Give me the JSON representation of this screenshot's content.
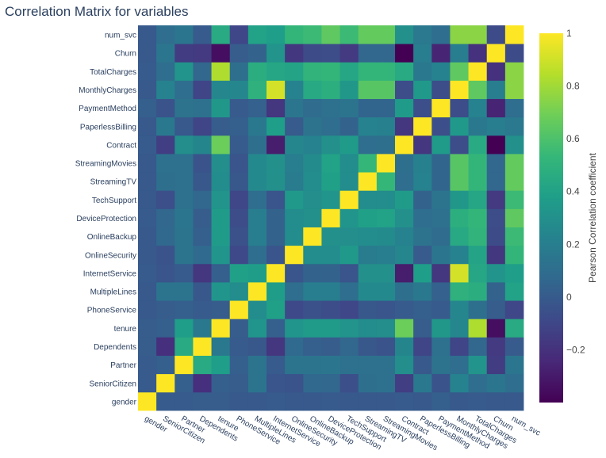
{
  "chart_data": {
    "type": "heatmap",
    "title": "Correlation Matrix for variables",
    "variables": [
      "gender",
      "SeniorCitizen",
      "Partner",
      "Dependents",
      "tenure",
      "PhoneService",
      "MultipleLines",
      "InternetService",
      "OnlineSecurity",
      "OnlineBackup",
      "DeviceProtection",
      "TechSupport",
      "StreamingTV",
      "StreamingMovies",
      "Contract",
      "PaperlessBilling",
      "PaymentMethod",
      "MonthlyCharges",
      "TotalCharges",
      "Churn",
      "num_svc"
    ],
    "values": [
      [
        1.0,
        0.0,
        0.0,
        0.01,
        0.01,
        -0.01,
        -0.01,
        0.0,
        -0.01,
        -0.01,
        0.0,
        -0.01,
        -0.01,
        -0.01,
        0.0,
        -0.01,
        0.02,
        -0.01,
        0.0,
        -0.01,
        -0.01
      ],
      [
        0.0,
        1.0,
        0.02,
        -0.21,
        0.02,
        0.01,
        0.14,
        -0.03,
        -0.04,
        0.07,
        0.06,
        -0.06,
        0.11,
        0.12,
        -0.14,
        0.16,
        -0.04,
        0.22,
        0.1,
        0.15,
        0.1
      ],
      [
        0.0,
        0.02,
        1.0,
        0.45,
        0.38,
        0.02,
        0.14,
        0.0,
        0.14,
        0.14,
        0.15,
        0.12,
        0.12,
        0.12,
        0.29,
        -0.01,
        0.13,
        0.1,
        0.32,
        -0.15,
        0.15
      ],
      [
        0.01,
        -0.21,
        0.45,
        1.0,
        0.16,
        -0.0,
        -0.02,
        -0.18,
        0.08,
        0.02,
        0.01,
        0.06,
        -0.02,
        -0.04,
        0.24,
        -0.11,
        0.12,
        -0.11,
        0.06,
        -0.16,
        0.0
      ],
      [
        0.01,
        0.02,
        0.38,
        0.16,
        1.0,
        0.01,
        0.33,
        0.02,
        0.33,
        0.36,
        0.36,
        0.32,
        0.28,
        0.29,
        0.68,
        0.01,
        0.34,
        0.25,
        0.83,
        -0.35,
        0.45
      ],
      [
        -0.01,
        0.01,
        0.02,
        -0.0,
        0.01,
        1.0,
        0.28,
        0.39,
        -0.09,
        -0.05,
        -0.07,
        -0.1,
        -0.02,
        -0.03,
        0.0,
        0.02,
        -0.0,
        0.25,
        0.11,
        0.01,
        -0.1
      ],
      [
        -0.01,
        0.14,
        0.14,
        -0.02,
        0.33,
        0.28,
        1.0,
        0.37,
        0.1,
        0.2,
        0.2,
        0.1,
        0.26,
        0.26,
        0.11,
        0.16,
        0.03,
        0.49,
        0.47,
        0.04,
        0.4
      ],
      [
        0.0,
        -0.03,
        0.0,
        -0.18,
        0.02,
        0.39,
        0.37,
        1.0,
        -0.03,
        0.04,
        0.04,
        -0.03,
        0.3,
        0.3,
        -0.29,
        0.38,
        -0.18,
        0.91,
        0.43,
        0.32,
        0.38
      ],
      [
        -0.01,
        -0.04,
        0.14,
        0.08,
        0.33,
        -0.09,
        0.1,
        -0.03,
        1.0,
        0.28,
        0.28,
        0.35,
        0.18,
        0.19,
        0.25,
        -0.0,
        0.15,
        0.22,
        0.41,
        -0.17,
        0.52
      ],
      [
        -0.01,
        0.07,
        0.14,
        0.02,
        0.36,
        -0.05,
        0.2,
        0.04,
        0.28,
        1.0,
        0.3,
        0.29,
        0.28,
        0.27,
        0.22,
        0.13,
        0.09,
        0.44,
        0.51,
        -0.08,
        0.55
      ],
      [
        0.0,
        0.06,
        0.15,
        0.01,
        0.36,
        -0.07,
        0.2,
        0.04,
        0.28,
        0.3,
        1.0,
        0.33,
        0.39,
        0.4,
        0.3,
        0.1,
        0.12,
        0.48,
        0.52,
        -0.07,
        0.65
      ],
      [
        -0.01,
        -0.06,
        0.12,
        0.06,
        0.32,
        -0.1,
        0.1,
        -0.03,
        0.35,
        0.29,
        0.33,
        1.0,
        0.28,
        0.28,
        0.36,
        0.04,
        0.14,
        0.34,
        0.43,
        -0.16,
        0.55
      ],
      [
        -0.01,
        0.11,
        0.12,
        -0.02,
        0.28,
        -0.02,
        0.26,
        0.3,
        0.18,
        0.28,
        0.39,
        0.28,
        1.0,
        0.53,
        0.1,
        0.22,
        0.05,
        0.63,
        0.52,
        0.06,
        0.66
      ],
      [
        -0.01,
        0.12,
        0.12,
        -0.04,
        0.29,
        -0.03,
        0.26,
        0.3,
        0.19,
        0.27,
        0.4,
        0.28,
        0.53,
        1.0,
        0.11,
        0.21,
        0.05,
        0.63,
        0.52,
        0.06,
        0.66
      ],
      [
        0.0,
        -0.14,
        0.29,
        0.24,
        0.68,
        0.0,
        0.11,
        -0.29,
        0.25,
        0.22,
        0.3,
        0.36,
        0.1,
        0.11,
        1.0,
        -0.18,
        0.36,
        -0.07,
        0.45,
        -0.4,
        0.3
      ],
      [
        -0.01,
        0.16,
        -0.01,
        -0.11,
        0.01,
        0.02,
        0.16,
        0.38,
        -0.0,
        0.13,
        0.1,
        0.04,
        0.22,
        0.21,
        -0.18,
        1.0,
        -0.06,
        0.35,
        0.16,
        0.19,
        0.17
      ],
      [
        0.02,
        -0.04,
        0.13,
        0.12,
        0.34,
        -0.0,
        0.03,
        -0.18,
        0.15,
        0.09,
        0.12,
        0.14,
        0.05,
        0.05,
        0.36,
        -0.06,
        1.0,
        -0.07,
        0.22,
        -0.26,
        0.1
      ],
      [
        -0.01,
        0.22,
        0.1,
        -0.11,
        0.25,
        0.25,
        0.49,
        0.91,
        0.22,
        0.44,
        0.48,
        0.34,
        0.63,
        0.63,
        -0.07,
        0.35,
        -0.07,
        1.0,
        0.65,
        0.19,
        0.75
      ],
      [
        0.0,
        0.1,
        0.32,
        0.06,
        0.83,
        0.11,
        0.47,
        0.43,
        0.41,
        0.51,
        0.52,
        0.43,
        0.52,
        0.52,
        0.45,
        0.16,
        0.22,
        0.65,
        1.0,
        -0.2,
        0.75
      ],
      [
        -0.01,
        0.15,
        -0.15,
        -0.16,
        -0.35,
        0.01,
        0.04,
        0.32,
        -0.17,
        -0.08,
        -0.07,
        -0.16,
        0.06,
        0.06,
        -0.4,
        0.19,
        -0.26,
        0.19,
        -0.2,
        1.0,
        -0.08
      ],
      [
        -0.01,
        0.1,
        0.15,
        0.0,
        0.45,
        -0.1,
        0.4,
        0.38,
        0.52,
        0.55,
        0.65,
        0.55,
        0.66,
        0.66,
        0.3,
        0.17,
        0.1,
        0.75,
        0.75,
        -0.08,
        1.0
      ]
    ],
    "zmin": -0.4,
    "zmax": 1.0,
    "colorbar": {
      "title": "Pearson Correlation coefficient",
      "ticks": [
        -0.2,
        0,
        0.2,
        0.4,
        0.6,
        0.8,
        1
      ]
    },
    "colorscale": [
      "#440154",
      "#482878",
      "#3e4989",
      "#31688e",
      "#26828e",
      "#1f9e89",
      "#35b779",
      "#6ece58",
      "#b5de2b",
      "#fde725"
    ]
  }
}
